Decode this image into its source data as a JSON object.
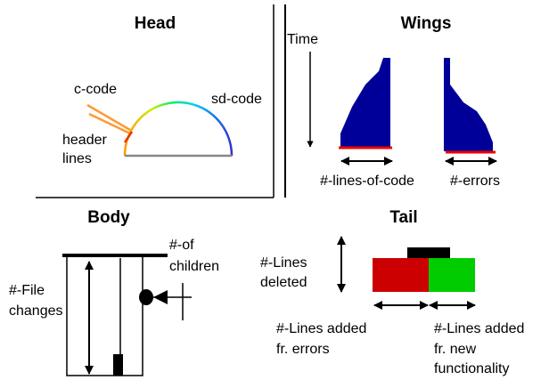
{
  "head": {
    "title": "Head",
    "c_code": "c-code",
    "header_lines": [
      "header",
      "lines"
    ],
    "sd_code": "sd-code"
  },
  "wings": {
    "title": "Wings",
    "time": "Time",
    "lines_of_code": "#-lines-of-code",
    "errors": "#-errors"
  },
  "body": {
    "title": "Body",
    "file_changes": [
      "#-File",
      "changes"
    ],
    "of_children": [
      "#-of",
      "children"
    ]
  },
  "tail": {
    "title": "Tail",
    "lines_deleted": [
      "#-Lines",
      "deleted"
    ],
    "added_errors": [
      "#-Lines added",
      "fr. errors"
    ],
    "added_new": [
      "#-Lines added",
      "fr. new",
      "functionality"
    ]
  }
}
